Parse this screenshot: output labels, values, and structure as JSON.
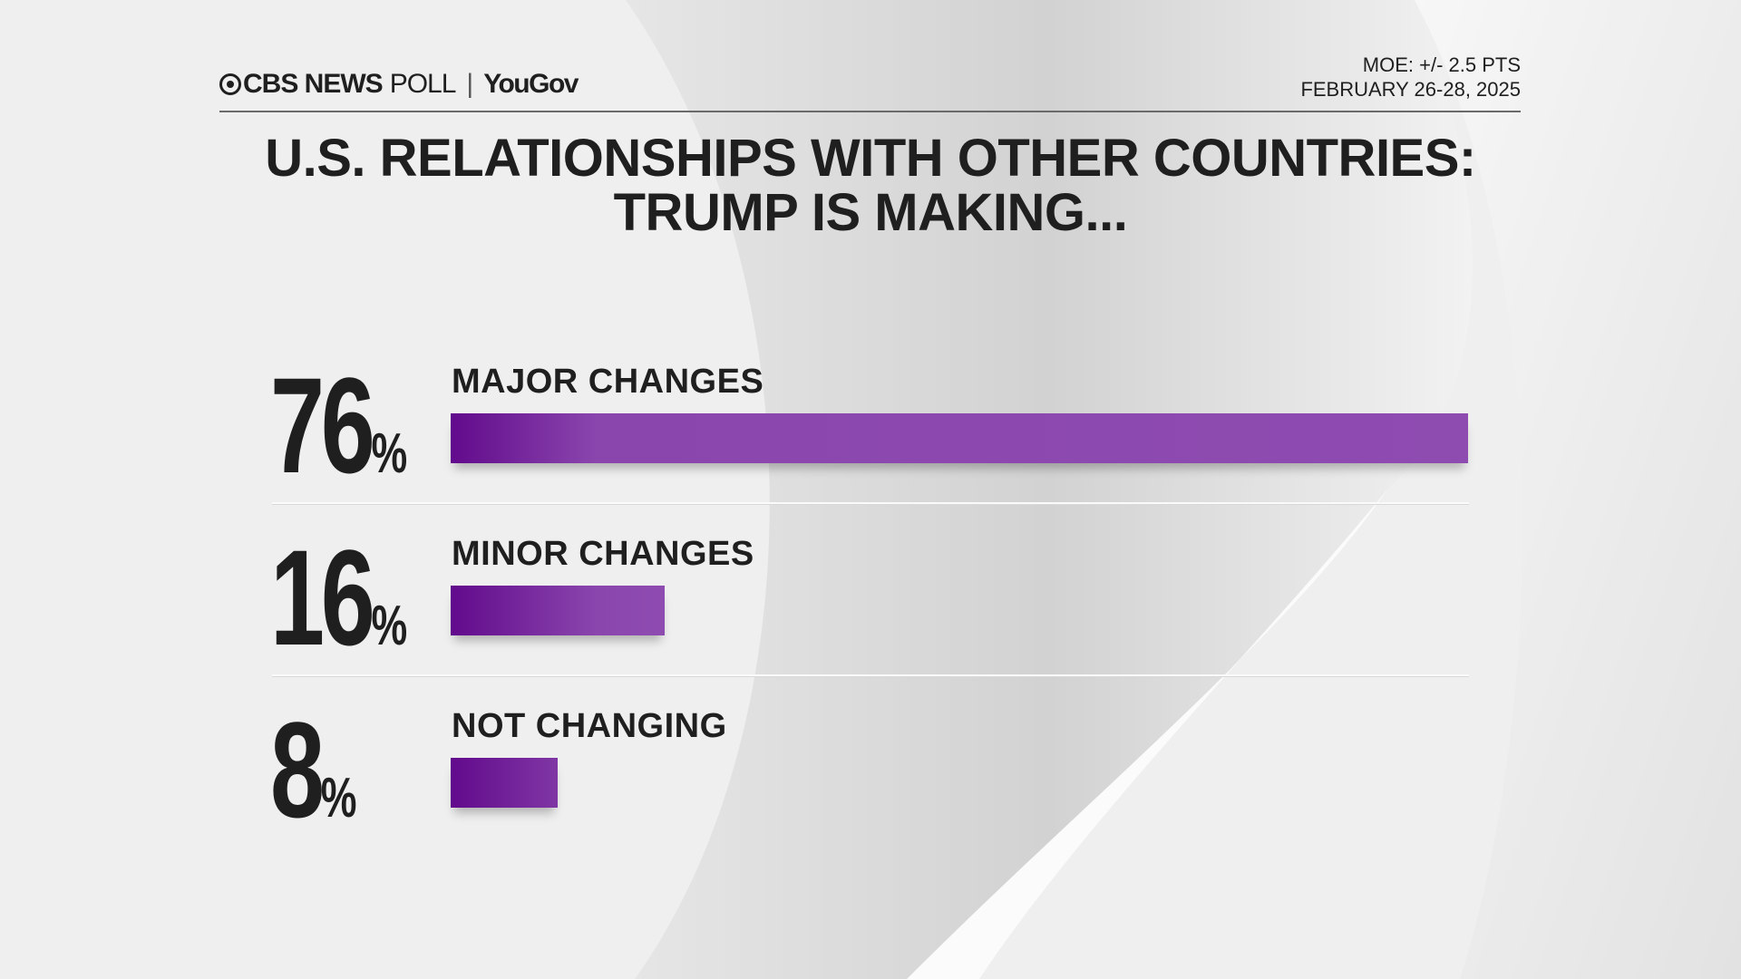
{
  "header": {
    "brand": "CBS NEWS",
    "brand_suffix": "POLL",
    "partner": "YouGov",
    "moe": "MOE: +/- 2.5 PTS",
    "dates": "FEBRUARY 26-28, 2025"
  },
  "colors": {
    "bar_start": "#620a8c",
    "bar_end": "#8e4bb0",
    "text": "#1f1f1f",
    "background": "#efefef"
  },
  "chart_data": {
    "type": "bar",
    "orientation": "horizontal",
    "title": "U.S. RELATIONSHIPS WITH OTHER COUNTRIES:",
    "subtitle": "TRUMP IS MAKING...",
    "categories": [
      "MAJOR CHANGES",
      "MINOR CHANGES",
      "NOT CHANGING"
    ],
    "values": [
      76,
      16,
      8
    ],
    "value_labels": [
      "76",
      "16",
      "8"
    ],
    "unit": "%",
    "grid": false
  }
}
